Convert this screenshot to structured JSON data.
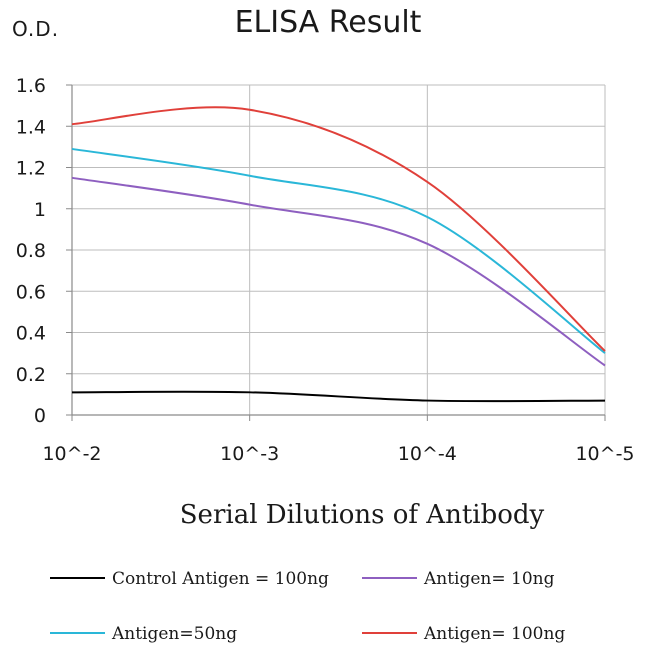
{
  "chart_data": {
    "type": "line",
    "title": "ELISA Result",
    "ylabel": "O.D.",
    "xlabel": "Serial Dilutions of Antibody",
    "categories": [
      "10^-2",
      "10^-3",
      "10^-4",
      "10^-5"
    ],
    "ylim": [
      0,
      1.6
    ],
    "yticks": [
      "0",
      "0.2",
      "0.4",
      "0.6",
      "0.8",
      "1",
      "1.2",
      "1.4",
      "1.6"
    ],
    "grid": true,
    "legend_position": "bottom",
    "series": [
      {
        "name": "Control Antigen = 100ng",
        "color": "#000000",
        "values": [
          0.11,
          0.11,
          0.07,
          0.07
        ]
      },
      {
        "name": "Antigen= 10ng",
        "color": "#8e5fc0",
        "values": [
          1.15,
          1.02,
          0.83,
          0.24
        ]
      },
      {
        "name": "Antigen=50ng",
        "color": "#2ab7d8",
        "values": [
          1.29,
          1.16,
          0.96,
          0.3
        ]
      },
      {
        "name": "Antigen= 100ng",
        "color": "#e0403a",
        "values": [
          1.41,
          1.48,
          1.13,
          0.31
        ]
      }
    ]
  }
}
